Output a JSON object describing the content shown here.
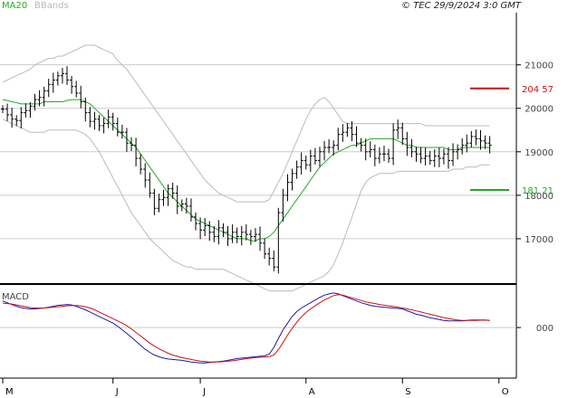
{
  "header": {
    "legend_ma": "MA20",
    "legend_bb": "BBands",
    "copyright": "© TEC 29/9/2024 3:0 GMT"
  },
  "macd_label": "MACD",
  "colors": {
    "bars": "#000000",
    "ma": "#22aa22",
    "bands": "#bbbbbb",
    "grid": "#cccccc",
    "macd": "#1a1aaa",
    "signal": "#cc1111",
    "resistance": "#cc1111",
    "support": "#22aa22"
  },
  "chart_data": [
    {
      "type": "ohlc",
      "y_ticks": [
        {
          "value": 17000,
          "label": "17000"
        },
        {
          "value": 18000,
          "label": "18000"
        },
        {
          "value": 19000,
          "label": "19000"
        },
        {
          "value": 20000,
          "label": "20000"
        },
        {
          "value": 21000,
          "label": "21000"
        }
      ],
      "ylim": [
        16000,
        22200
      ],
      "x_ticks": [
        {
          "index": 0,
          "label": "M"
        },
        {
          "index": 24,
          "label": "J"
        },
        {
          "index": 43,
          "label": "J"
        },
        {
          "index": 66,
          "label": "A"
        },
        {
          "index": 87,
          "label": "S"
        },
        {
          "index": 108,
          "label": "O"
        }
      ],
      "x_count": 112,
      "levels": [
        {
          "name": "resistance",
          "value": 20457,
          "label": "204 57"
        },
        {
          "name": "support",
          "value": 18121,
          "label": "181 21"
        }
      ],
      "closes": [
        19980,
        19850,
        19750,
        19720,
        19900,
        19950,
        20050,
        20200,
        20250,
        20400,
        20550,
        20650,
        20750,
        20800,
        20650,
        20500,
        20350,
        20150,
        19900,
        19700,
        19750,
        19600,
        19650,
        19800,
        19650,
        19450,
        19450,
        19200,
        19150,
        18850,
        18600,
        18350,
        18050,
        17700,
        17900,
        17950,
        18150,
        18050,
        17750,
        17800,
        17750,
        17500,
        17350,
        17200,
        17300,
        17150,
        17050,
        17250,
        17150,
        17000,
        17150,
        17050,
        17150,
        17100,
        17050,
        17100,
        16900,
        16650,
        16550,
        16350,
        17600,
        18000,
        18300,
        18500,
        18650,
        18800,
        18700,
        18900,
        18800,
        19000,
        19100,
        19100,
        19150,
        19400,
        19450,
        19550,
        19400,
        19200,
        19150,
        19000,
        19050,
        18850,
        18950,
        18950,
        18850,
        19500,
        19550,
        19300,
        19100,
        19000,
        18950,
        18850,
        18900,
        18800,
        18900,
        18850,
        18950,
        18800,
        19000,
        19050,
        19150,
        19200,
        19350,
        19300,
        19250,
        19200,
        19150
      ],
      "ma20": [
        20200,
        20180,
        20150,
        20130,
        20100,
        20100,
        20100,
        20100,
        20100,
        20150,
        20150,
        20150,
        20150,
        20150,
        20180,
        20200,
        20200,
        20200,
        20150,
        20100,
        20000,
        19900,
        19800,
        19700,
        19600,
        19500,
        19400,
        19300,
        19200,
        19100,
        18950,
        18800,
        18650,
        18500,
        18350,
        18200,
        18050,
        17950,
        17850,
        17750,
        17650,
        17550,
        17450,
        17400,
        17350,
        17300,
        17250,
        17200,
        17150,
        17100,
        17050,
        17000,
        17000,
        17000,
        16950,
        16950,
        17000,
        17000,
        17050,
        17150,
        17300,
        17450,
        17600,
        17750,
        17900,
        18050,
        18200,
        18350,
        18500,
        18650,
        18750,
        18850,
        18950,
        19000,
        19050,
        19100,
        19150,
        19150,
        19200,
        19250,
        19300,
        19300,
        19300,
        19300,
        19300,
        19300,
        19250,
        19200,
        19150,
        19150,
        19100,
        19100,
        19100,
        19100,
        19100,
        19100,
        19100,
        19050,
        19050,
        19050,
        19100,
        19100,
        19100,
        19100,
        19100,
        19100,
        19100
      ],
      "bb_upper": [
        20600,
        20650,
        20700,
        20750,
        20800,
        20850,
        20900,
        21000,
        21050,
        21100,
        21150,
        21150,
        21200,
        21200,
        21250,
        21300,
        21350,
        21400,
        21450,
        21450,
        21450,
        21400,
        21350,
        21300,
        21250,
        21100,
        21000,
        20900,
        20750,
        20600,
        20450,
        20300,
        20150,
        20000,
        19850,
        19700,
        19550,
        19400,
        19250,
        19100,
        18950,
        18800,
        18650,
        18500,
        18350,
        18250,
        18150,
        18050,
        18000,
        17950,
        17900,
        17850,
        17850,
        17850,
        17850,
        17850,
        17850,
        17850,
        17900,
        18100,
        18300,
        18500,
        18750,
        19000,
        19250,
        19500,
        19750,
        19950,
        20100,
        20200,
        20250,
        20150,
        20000,
        19850,
        19700,
        19650,
        19650,
        19650,
        19650,
        19650,
        19650,
        19650,
        19650,
        19650,
        19650,
        19650,
        19650,
        19650,
        19650,
        19650,
        19650,
        19650,
        19600,
        19600,
        19600,
        19600,
        19600,
        19600,
        19600,
        19600,
        19600,
        19600,
        19600,
        19600,
        19600,
        19600,
        19600
      ],
      "bb_lower": [
        19750,
        19700,
        19650,
        19600,
        19550,
        19500,
        19450,
        19450,
        19450,
        19450,
        19500,
        19500,
        19500,
        19500,
        19500,
        19500,
        19500,
        19450,
        19400,
        19300,
        19150,
        19000,
        18800,
        18600,
        18400,
        18200,
        18000,
        17800,
        17600,
        17450,
        17300,
        17150,
        17000,
        16900,
        16800,
        16700,
        16600,
        16500,
        16450,
        16400,
        16350,
        16350,
        16300,
        16300,
        16300,
        16300,
        16300,
        16300,
        16300,
        16250,
        16200,
        16150,
        16100,
        16050,
        16000,
        15950,
        15900,
        15850,
        15800,
        15800,
        15800,
        15800,
        15800,
        15800,
        15850,
        15900,
        15950,
        16000,
        16050,
        16100,
        16150,
        16250,
        16400,
        16650,
        16900,
        17200,
        17500,
        17800,
        18100,
        18300,
        18400,
        18450,
        18500,
        18500,
        18500,
        18500,
        18550,
        18550,
        18550,
        18550,
        18550,
        18550,
        18550,
        18550,
        18550,
        18550,
        18550,
        18550,
        18600,
        18600,
        18600,
        18650,
        18650,
        18650,
        18700,
        18700,
        18700
      ]
    },
    {
      "type": "line",
      "name": "MACD",
      "y_ticks": [
        {
          "value": 0,
          "label": "000"
        }
      ],
      "ylim": [
        -1100,
        900
      ],
      "macd": [
        600,
        560,
        520,
        480,
        450,
        430,
        420,
        420,
        430,
        440,
        460,
        480,
        500,
        510,
        520,
        510,
        480,
        440,
        400,
        350,
        300,
        250,
        200,
        150,
        100,
        30,
        -50,
        -130,
        -220,
        -310,
        -400,
        -490,
        -560,
        -620,
        -660,
        -690,
        -710,
        -720,
        -730,
        -740,
        -760,
        -780,
        -790,
        -800,
        -800,
        -790,
        -780,
        -770,
        -760,
        -740,
        -720,
        -700,
        -690,
        -680,
        -670,
        -660,
        -650,
        -640,
        -600,
        -450,
        -250,
        -50,
        100,
        250,
        360,
        440,
        500,
        560,
        620,
        680,
        730,
        760,
        780,
        760,
        720,
        680,
        640,
        600,
        560,
        530,
        500,
        480,
        470,
        460,
        450,
        440,
        430,
        420,
        380,
        340,
        300,
        280,
        250,
        220,
        200,
        180,
        160,
        150,
        150,
        150,
        150,
        160,
        170,
        170,
        170,
        170,
        160
      ],
      "signal": [
        550,
        540,
        530,
        510,
        490,
        470,
        450,
        440,
        440,
        440,
        450,
        460,
        470,
        480,
        490,
        495,
        495,
        490,
        470,
        440,
        400,
        350,
        300,
        250,
        200,
        150,
        100,
        40,
        -30,
        -110,
        -190,
        -270,
        -350,
        -420,
        -480,
        -530,
        -580,
        -620,
        -650,
        -680,
        -700,
        -720,
        -740,
        -760,
        -770,
        -780,
        -780,
        -775,
        -770,
        -760,
        -750,
        -735,
        -720,
        -705,
        -690,
        -680,
        -670,
        -665,
        -655,
        -620,
        -500,
        -340,
        -170,
        -20,
        120,
        240,
        340,
        420,
        490,
        560,
        620,
        670,
        720,
        740,
        730,
        700,
        670,
        640,
        610,
        580,
        560,
        540,
        520,
        505,
        490,
        475,
        460,
        440,
        420,
        400,
        375,
        350,
        325,
        300,
        275,
        250,
        225,
        205,
        185,
        170,
        160,
        160,
        160,
        160,
        165,
        165,
        160
      ]
    }
  ]
}
